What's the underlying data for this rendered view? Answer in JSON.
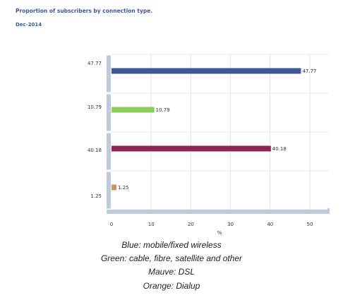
{
  "header": {
    "title": "Proportion of subscribers by connection type.",
    "subtitle": "Dec-2014"
  },
  "chart_data": {
    "type": "bar",
    "orientation": "horizontal",
    "categories": [
      "47.77",
      "10.79",
      "40.18",
      "1.25"
    ],
    "values": [
      47.77,
      10.79,
      40.18,
      1.25
    ],
    "data_labels": [
      "47.77",
      "10.79",
      "40.18",
      "1.25"
    ],
    "colors": [
      "#3f5893",
      "#8dce58",
      "#8f2557",
      "#c29863"
    ],
    "xlabel": "%",
    "ylabel": "",
    "xlim": [
      0,
      55
    ],
    "xticks": [
      "0",
      "10",
      "20",
      "30",
      "40",
      "50"
    ],
    "grid": true
  },
  "legend": [
    "Blue: mobile/fixed wireless",
    "Green: cable, fibre, satellite and other",
    "Mauve: DSL",
    "Orange: Dialup"
  ]
}
